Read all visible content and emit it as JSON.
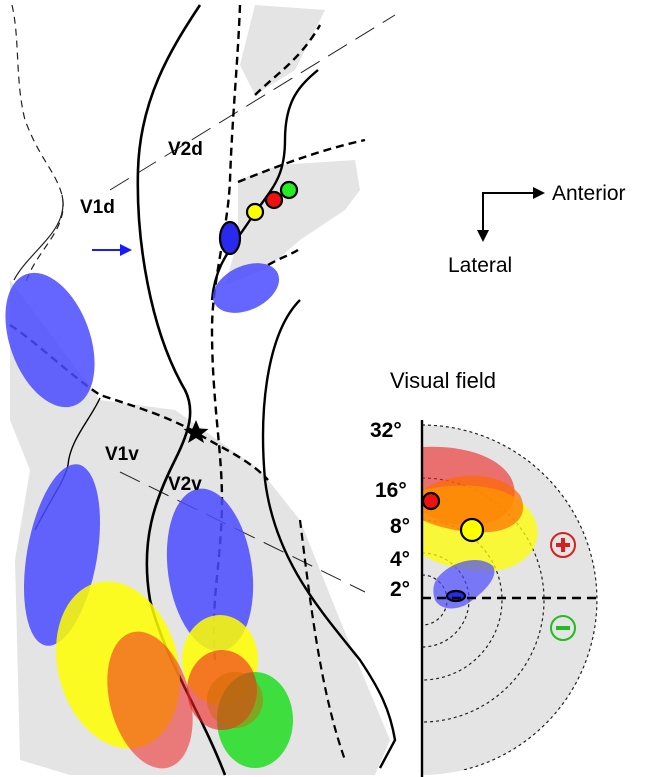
{
  "areas": {
    "v1d": "V1d",
    "v2d": "V2d",
    "v1v": "V1v",
    "v2v": "V2v"
  },
  "orientation": {
    "anterior": "Anterior",
    "lateral": "Lateral"
  },
  "visual_field": {
    "title": "Visual field",
    "eccentricity_labels": [
      "32°",
      "16°",
      "8°",
      "4°",
      "2°"
    ],
    "upper_sign": "+",
    "lower_sign": "−"
  },
  "colors": {
    "blue": "#4a4aff",
    "yellow": "#ffff00",
    "orange": "#ff6a00",
    "red": "#e82020",
    "green": "#22dd22",
    "gray": "#e4e4e4",
    "plus_ring": "#d42020",
    "minus_ring": "#22bb22"
  }
}
